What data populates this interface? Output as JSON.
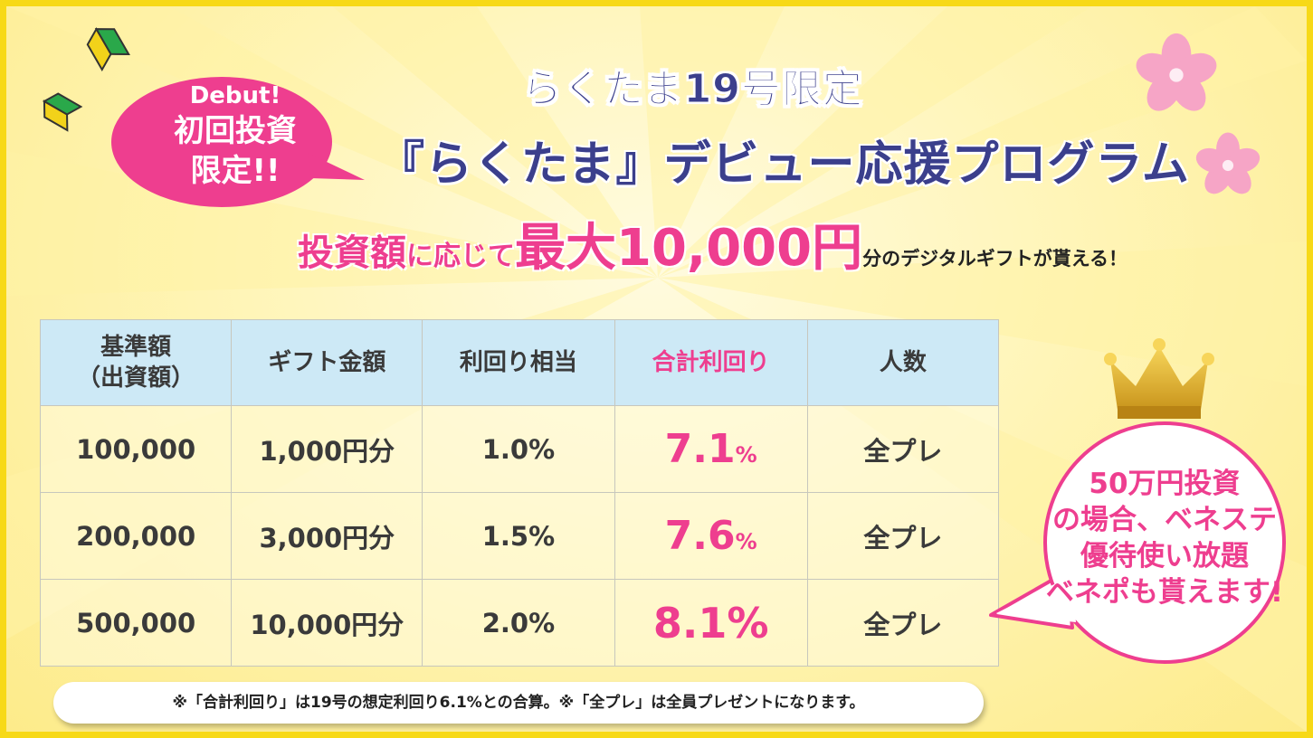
{
  "bubble_left": {
    "line1": "Debut!",
    "line2": "初回投資",
    "line3": "限定!!"
  },
  "title": {
    "line1": "らくたま19号限定",
    "line2": "『らくたま』デビュー応援プログラム"
  },
  "headline": {
    "part1": "投資額",
    "part2": "に応じて",
    "part3": "最大10,000円",
    "part4": "分のデジタルギフトが貰える！"
  },
  "table": {
    "headers": {
      "base_line1": "基準額",
      "base_line2": "（出資額）",
      "gift": "ギフト金額",
      "yield_equiv": "利回り相当",
      "total_yield": "合計利回り",
      "people": "人数"
    },
    "rows": [
      {
        "base": "100,000",
        "gift": "1,000円分",
        "yield": "1.0%",
        "total": "7.1",
        "unit": "%",
        "people": "全プレ"
      },
      {
        "base": "200,000",
        "gift": "3,000円分",
        "yield": "1.5%",
        "total": "7.6",
        "unit": "%",
        "people": "全プレ"
      },
      {
        "base": "500,000",
        "gift": "10,000円分",
        "yield": "2.0%",
        "total": "8.1",
        "unit": "%",
        "people": "全プレ"
      }
    ]
  },
  "bubble_right": {
    "line1": "50万円投資",
    "line2": "の場合、ベネステ",
    "line3": "優待使い放題",
    "line4": "ベネポも貰えます!"
  },
  "note": "※「合計利回り」は19号の想定利回り6.1%との合算。※「全プレ」は全員プレゼントになります。",
  "colors": {
    "navy": "#3b3f8c",
    "pink": "#ee3e8f",
    "border_yellow": "#f7d917",
    "header_blue": "#cde9f6"
  },
  "icons": [
    "beginner-mark-icon",
    "sakura-icon",
    "crown-icon"
  ]
}
